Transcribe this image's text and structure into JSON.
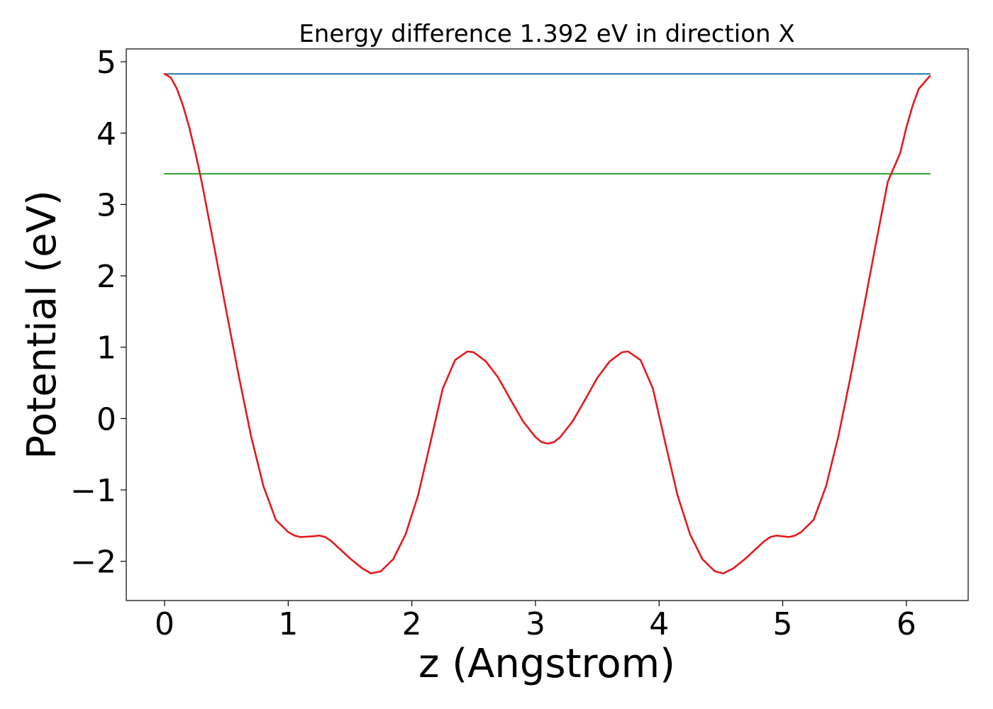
{
  "chart_data": {
    "type": "line",
    "title": "Energy difference 1.392 eV in direction X",
    "xlabel": "z (Angstrom)",
    "ylabel": "Potential (eV)",
    "xlim": [
      -0.31,
      6.5
    ],
    "ylim": [
      -2.55,
      5.18
    ],
    "xticks": [
      0,
      1,
      2,
      3,
      4,
      5,
      6
    ],
    "yticks": [
      -2,
      -1,
      0,
      1,
      2,
      3,
      4,
      5
    ],
    "xtick_labels": [
      "0",
      "1",
      "2",
      "3",
      "4",
      "5",
      "6"
    ],
    "ytick_labels": [
      "−2",
      "−1",
      "0",
      "1",
      "2",
      "3",
      "4",
      "5"
    ],
    "grid": false,
    "legend": "none",
    "series": [
      {
        "color": "#1f77b4",
        "x": [
          0,
          6.19
        ],
        "y": [
          4.83,
          4.83
        ]
      },
      {
        "color": "#2ca02c",
        "x": [
          0,
          6.19
        ],
        "y": [
          3.43,
          3.43
        ]
      },
      {
        "color": "#e41a1c",
        "x": [
          0,
          0.05,
          0.1,
          0.15,
          0.2,
          0.25,
          0.3,
          0.4,
          0.5,
          0.6,
          0.7,
          0.8,
          0.9,
          1.0,
          1.05,
          1.1,
          1.2,
          1.25,
          1.3,
          1.35,
          1.4,
          1.5,
          1.6,
          1.67,
          1.75,
          1.85,
          1.95,
          2.05,
          2.15,
          2.25,
          2.35,
          2.45,
          2.5,
          2.6,
          2.7,
          2.8,
          2.9,
          3.0,
          3.05,
          3.1,
          3.15,
          3.2,
          3.3,
          3.4,
          3.5,
          3.6,
          3.7,
          3.75,
          3.85,
          3.95,
          4.05,
          4.15,
          4.25,
          4.35,
          4.45,
          4.52,
          4.6,
          4.7,
          4.8,
          4.85,
          4.9,
          4.95,
          5.0,
          5.05,
          5.1,
          5.15,
          5.25,
          5.35,
          5.45,
          5.55,
          5.65,
          5.75,
          5.85,
          5.95,
          6.0,
          6.05,
          6.1,
          6.15,
          6.19
        ],
        "y": [
          4.83,
          4.78,
          4.62,
          4.38,
          4.08,
          3.72,
          3.32,
          2.42,
          1.5,
          0.6,
          -0.25,
          -0.95,
          -1.42,
          -1.59,
          -1.64,
          -1.66,
          -1.65,
          -1.64,
          -1.66,
          -1.72,
          -1.8,
          -1.96,
          -2.1,
          -2.17,
          -2.14,
          -1.97,
          -1.62,
          -1.08,
          -0.34,
          0.42,
          0.82,
          0.94,
          0.93,
          0.8,
          0.57,
          0.26,
          -0.04,
          -0.26,
          -0.33,
          -0.35,
          -0.33,
          -0.26,
          -0.04,
          0.26,
          0.57,
          0.8,
          0.93,
          0.94,
          0.82,
          0.42,
          -0.34,
          -1.08,
          -1.62,
          -1.97,
          -2.14,
          -2.17,
          -2.1,
          -1.96,
          -1.8,
          -1.72,
          -1.66,
          -1.64,
          -1.65,
          -1.66,
          -1.64,
          -1.59,
          -1.42,
          -0.95,
          -0.25,
          0.6,
          1.5,
          2.42,
          3.32,
          3.72,
          4.08,
          4.38,
          4.62,
          4.72,
          4.8
        ]
      }
    ]
  }
}
